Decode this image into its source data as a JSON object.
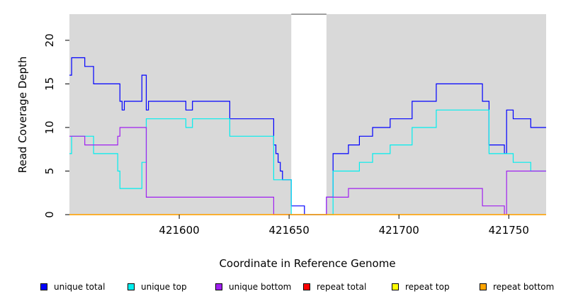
{
  "chart_data": {
    "type": "line",
    "xlabel": "Coordinate in Reference Genome",
    "ylabel": "Read Coverage Depth",
    "xlim": [
      421550,
      421767
    ],
    "ylim": [
      0,
      23
    ],
    "x_ticks": [
      421600,
      421650,
      421700,
      421750
    ],
    "x_tick_labels": [
      "421600",
      "421650",
      "421700",
      "421750"
    ],
    "y_ticks": [
      0,
      5,
      10,
      15,
      20
    ],
    "y_tick_labels": [
      "0",
      "5",
      "10",
      "15",
      "20"
    ],
    "background_color": "#d9d9d9",
    "gap_region": [
      421651,
      421667
    ],
    "grid": false,
    "series": [
      {
        "name": "unique total",
        "color": "#0000ff",
        "x": [
          421550,
          421551,
          421557,
          421561,
          421573,
          421574,
          421575,
          421583,
          421585,
          421586,
          421603,
          421606,
          421623,
          421643,
          421644,
          421645,
          421646,
          421647,
          421651,
          421657,
          421667,
          421670,
          421677,
          421682,
          421688,
          421696,
          421706,
          421717,
          421738,
          421741,
          421748,
          421749,
          421752,
          421760,
          421767
        ],
        "y": [
          16,
          18,
          17,
          15,
          13,
          12,
          13,
          16,
          12,
          13,
          12,
          13,
          11,
          8,
          7,
          6,
          5,
          4,
          1,
          0,
          2,
          7,
          8,
          9,
          10,
          11,
          13,
          15,
          13,
          8,
          7,
          12,
          11,
          10,
          10
        ]
      },
      {
        "name": "unique top",
        "color": "#00eeee",
        "x": [
          421550,
          421551,
          421557,
          421561,
          421572,
          421573,
          421583,
          421585,
          421603,
          421606,
          421623,
          421643,
          421651,
          421667,
          421670,
          421682,
          421688,
          421696,
          421706,
          421717,
          421741,
          421749,
          421752,
          421760,
          421767
        ],
        "y": [
          7,
          9,
          9,
          7,
          5,
          3,
          6,
          11,
          10,
          11,
          9,
          4,
          0,
          0,
          5,
          6,
          7,
          8,
          10,
          12,
          7,
          7,
          6,
          5,
          5
        ]
      },
      {
        "name": "unique bottom",
        "color": "#a020f0",
        "x": [
          421550,
          421551,
          421557,
          421572,
          421573,
          421585,
          421643,
          421667,
          421677,
          421738,
          421748,
          421749,
          421767
        ],
        "y": [
          9,
          9,
          8,
          9,
          10,
          2,
          0,
          2,
          3,
          1,
          0,
          5,
          5
        ]
      },
      {
        "name": "repeat total",
        "color": "#ff0000",
        "x": [
          421550,
          421767
        ],
        "y": [
          0,
          0
        ]
      },
      {
        "name": "repeat top",
        "color": "#ffff00",
        "x": [
          421550,
          421767
        ],
        "y": [
          0,
          0
        ]
      },
      {
        "name": "repeat bottom",
        "color": "#ffa500",
        "x": [
          421550,
          421767
        ],
        "y": [
          0,
          0
        ]
      }
    ],
    "legend_placement": "bottom"
  }
}
